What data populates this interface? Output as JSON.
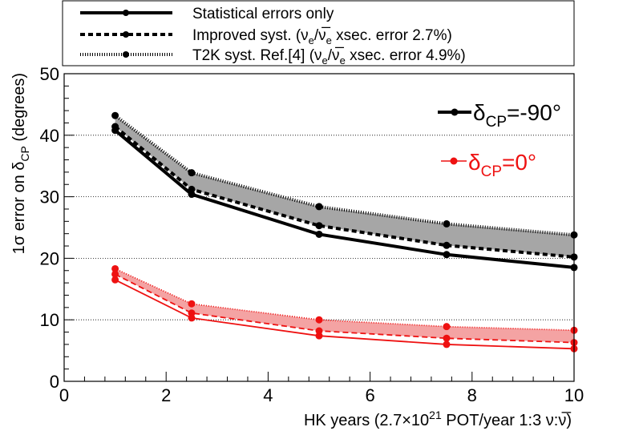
{
  "chart_data": {
    "type": "line",
    "xlabel": "HK years (2.7×10",
    "xlabel_sup": "21",
    "xlabel_tail": " POT/year 1:3 ν:ν̅)",
    "ylabel_prefix": "1σ error on δ",
    "ylabel_sub": "CP",
    "ylabel_suffix": " (degrees)",
    "xlim": [
      0,
      10
    ],
    "ylim": [
      0,
      50
    ],
    "x_ticks": [
      0,
      2,
      4,
      6,
      8,
      10
    ],
    "y_ticks": [
      0,
      10,
      20,
      30,
      40,
      50
    ],
    "grid": "horizontal dotted",
    "x": [
      1,
      2.5,
      5,
      7.5,
      10
    ],
    "legend": {
      "placement": "top",
      "entries": [
        {
          "style": "solid",
          "label": "Statistical errors only"
        },
        {
          "style": "dashed",
          "label": "Improved syst. (ν",
          "sub1": "e",
          "mid": "/ν̅",
          "sub2": "e",
          "tail": " xsec. error 2.7%)"
        },
        {
          "style": "dotted",
          "label": "T2K syst. Ref.[4] (ν",
          "sub1": "e",
          "mid": "/ν̅",
          "sub2": "e",
          "tail": " xsec. error 4.9%)"
        }
      ]
    },
    "groups": [
      {
        "label_main": "δ",
        "label_sub": "CP",
        "label_tail": "=-90°",
        "color": "#000000",
        "band_color": "#a6a6a6",
        "series": [
          {
            "style": "solid",
            "values": [
              40.8,
              30.4,
              23.9,
              20.6,
              18.5
            ]
          },
          {
            "style": "dashed",
            "values": [
              41.4,
              31.2,
              25.3,
              22.1,
              20.2
            ]
          },
          {
            "style": "dotted",
            "values": [
              43.2,
              33.9,
              28.4,
              25.6,
              23.8
            ]
          }
        ]
      },
      {
        "label_main": "δ",
        "label_sub": "CP",
        "label_tail": "=0°",
        "color": "#ee1111",
        "band_color": "#f4a3a3",
        "series": [
          {
            "style": "solid",
            "values": [
              16.5,
              10.3,
              7.4,
              6.0,
              5.3
            ]
          },
          {
            "style": "dashed",
            "values": [
              17.4,
              11.1,
              8.2,
              7.0,
              6.3
            ]
          },
          {
            "style": "dotted",
            "values": [
              18.3,
              12.6,
              10.0,
              8.9,
              8.3
            ]
          }
        ]
      }
    ]
  }
}
